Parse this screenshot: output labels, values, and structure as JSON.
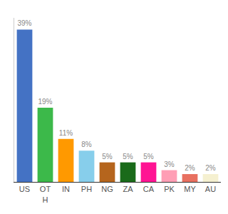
{
  "chart_data": {
    "type": "bar",
    "categories": [
      "US",
      "OT\nH",
      "IN",
      "PH",
      "NG",
      "ZA",
      "CA",
      "PK",
      "MY",
      "AU"
    ],
    "values": [
      39,
      19,
      11,
      8,
      5,
      5,
      5,
      3,
      2,
      2
    ],
    "value_labels": [
      "39%",
      "19%",
      "11%",
      "8%",
      "5%",
      "5%",
      "5%",
      "3%",
      "2%",
      "2%"
    ],
    "colors": [
      "#4472c4",
      "#3cb94a",
      "#ff9900",
      "#87ceeb",
      "#b5651d",
      "#1a6b1a",
      "#ff1493",
      "#ff9eb5",
      "#e87060",
      "#f5f0d0"
    ],
    "ylim": [
      0,
      42
    ],
    "grid": false,
    "data_labels": true,
    "tick_labels": "x"
  }
}
